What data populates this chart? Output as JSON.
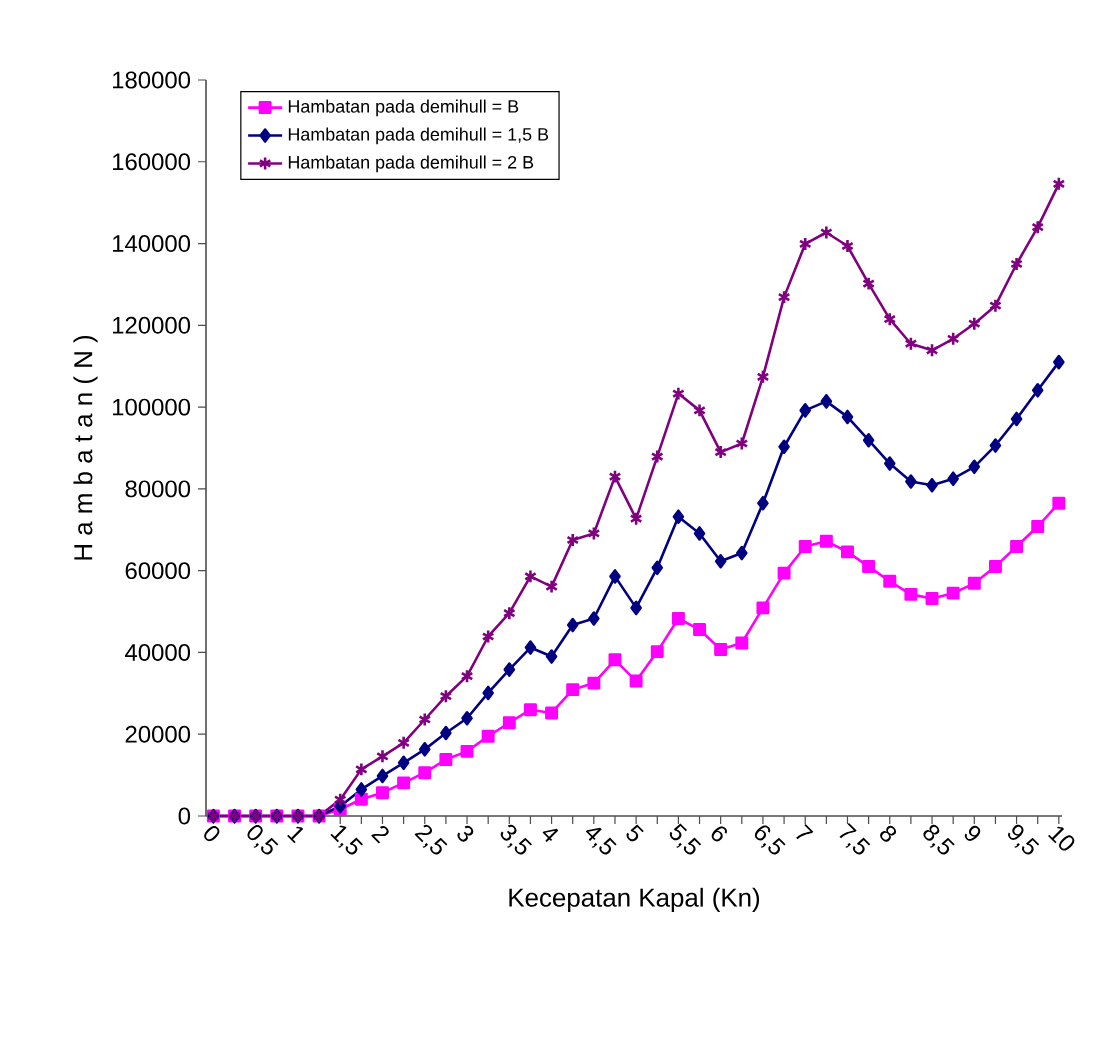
{
  "chart_data": {
    "type": "line",
    "xlabel": "Kecepatan Kapal (Kn)",
    "ylabel": "H a m b a t a n ( N )",
    "categories": [
      "0",
      null,
      "0,5",
      null,
      "1",
      null,
      "1,5",
      null,
      "2",
      null,
      "2,5",
      null,
      "3",
      null,
      "3,5",
      null,
      "4",
      null,
      "4,5",
      null,
      "5",
      null,
      "5,5",
      null,
      "6",
      null,
      "6,5",
      null,
      "7",
      null,
      "7,5",
      null,
      "8",
      null,
      "8,5",
      null,
      "9",
      null,
      "9,5",
      null,
      "10"
    ],
    "series": [
      {
        "name": "Hambatan pada demihull = B",
        "color": "#ff00ff",
        "marker": "square",
        "values": [
          0,
          0,
          0,
          0,
          0,
          0,
          1600,
          4100,
          5700,
          8100,
          10600,
          13800,
          15800,
          19500,
          22800,
          26000,
          25200,
          30900,
          32500,
          38200,
          33000,
          40200,
          48300,
          45600,
          40700,
          42300,
          50900,
          59400,
          65900,
          67200,
          64600,
          61000,
          57400,
          54200,
          53200,
          54500,
          56900,
          61000,
          65900,
          70800,
          76500
        ]
      },
      {
        "name": "Hambatan pada demihull = 1,5 B",
        "color": "#000080",
        "marker": "diamond",
        "values": [
          0,
          0,
          0,
          0,
          0,
          0,
          2400,
          6500,
          9800,
          13000,
          16300,
          20300,
          23900,
          30100,
          35800,
          41200,
          39000,
          46700,
          48300,
          58600,
          50900,
          60700,
          73200,
          69100,
          62300,
          64300,
          76500,
          90300,
          99200,
          101400,
          97600,
          91900,
          86200,
          81800,
          80900,
          82500,
          85400,
          90600,
          97100,
          104100,
          111000
        ]
      },
      {
        "name": "Hambatan pada demihull = 2 B",
        "color": "#800080",
        "marker": "cross",
        "values": [
          0,
          0,
          0,
          0,
          0,
          0,
          4000,
          11400,
          14600,
          17900,
          23600,
          29300,
          34200,
          43900,
          49600,
          58600,
          56100,
          67500,
          69100,
          83000,
          72700,
          87900,
          103300,
          99200,
          89000,
          91100,
          107400,
          126900,
          139900,
          142700,
          139400,
          130200,
          121500,
          115500,
          113900,
          116700,
          120400,
          124800,
          135000,
          144000,
          154600
        ]
      }
    ],
    "ylim": [
      0,
      180000
    ],
    "yticks": [
      0,
      20000,
      40000,
      60000,
      80000,
      100000,
      120000,
      140000,
      160000,
      180000
    ],
    "legend": "top left",
    "grid": false
  }
}
